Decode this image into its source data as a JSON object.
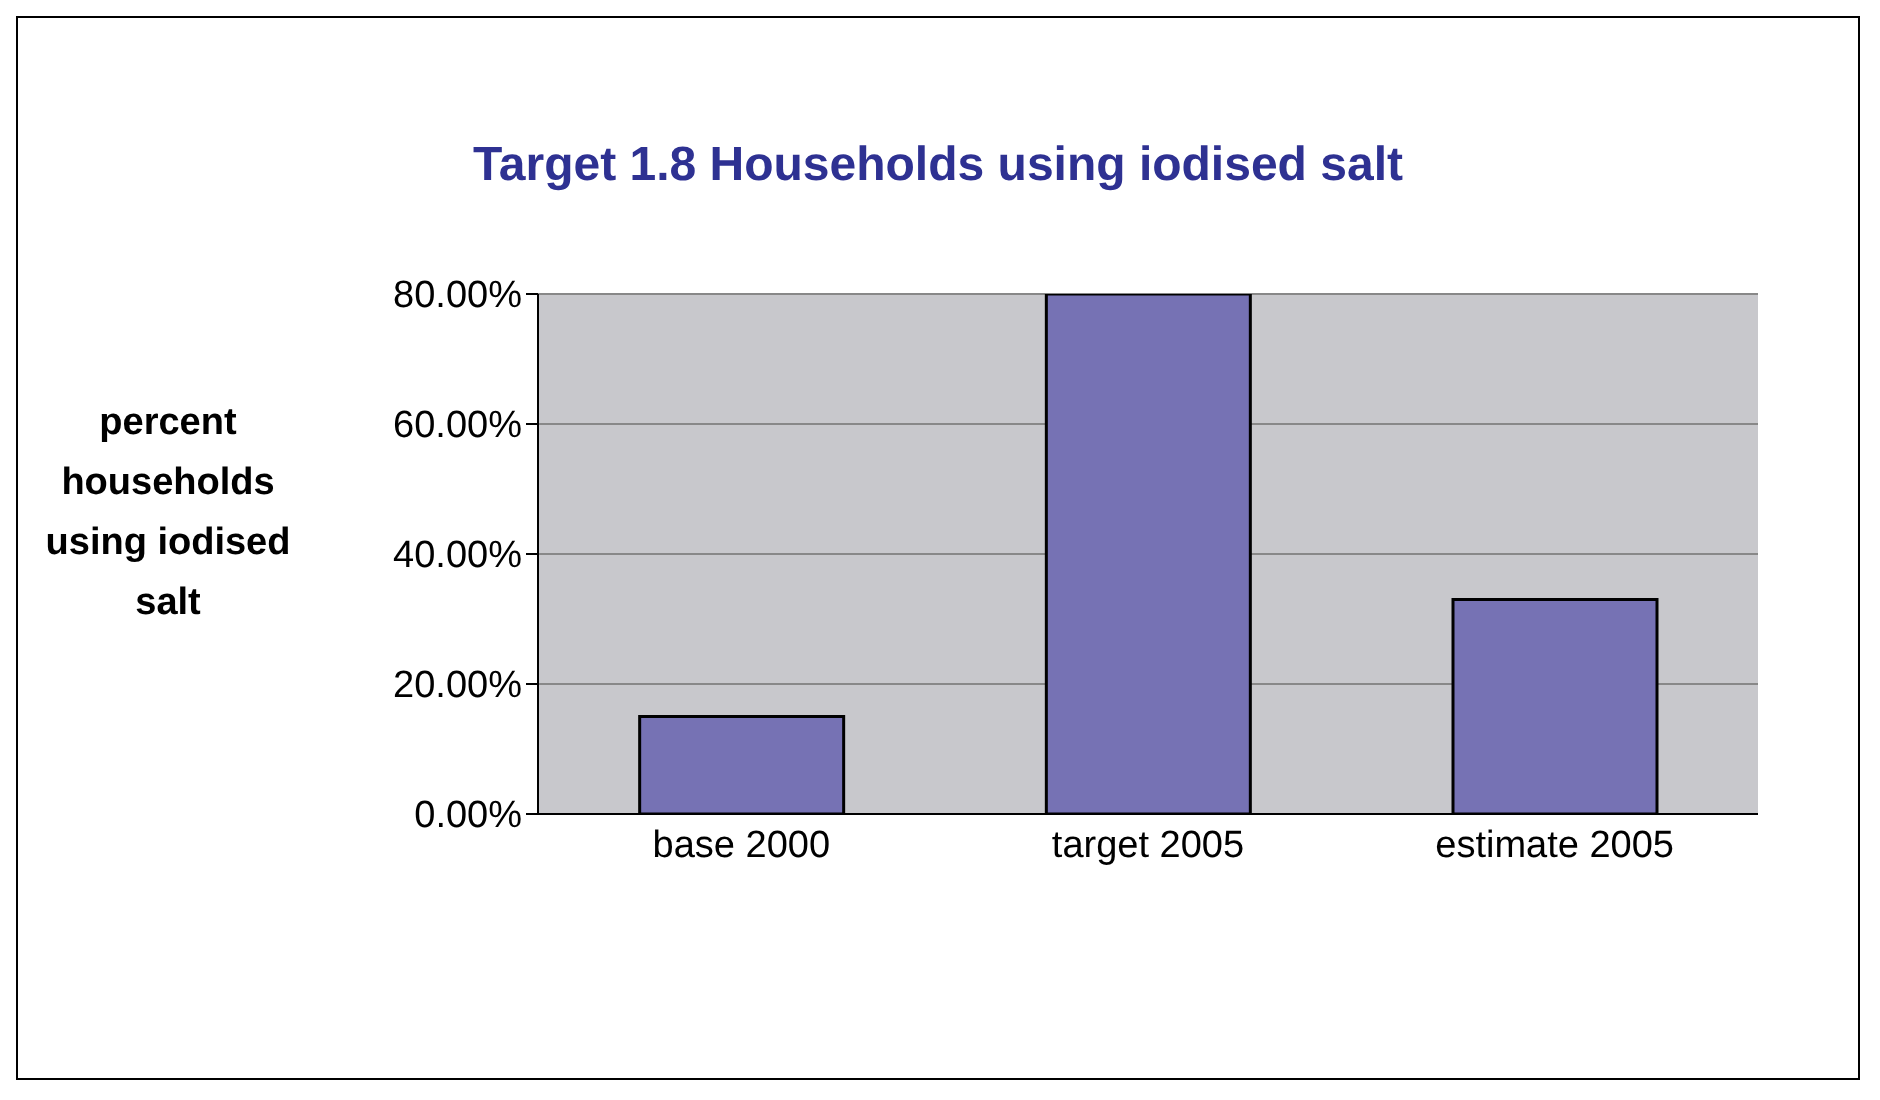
{
  "chart_data": {
    "type": "bar",
    "title": "Target 1.8 Households using iodised salt",
    "ylabel": "percent households using iodised salt",
    "categories": [
      "base 2000",
      "target 2005",
      "estimate 2005"
    ],
    "values": [
      15,
      80,
      33
    ],
    "color": "#7672b4",
    "ylim": [
      0,
      80
    ],
    "yticks": [
      {
        "value": 0,
        "label": "0.00%"
      },
      {
        "value": 20,
        "label": "20.00%"
      },
      {
        "value": 40,
        "label": "40.00%"
      },
      {
        "value": 60,
        "label": "60.00%"
      },
      {
        "value": 80,
        "label": "80.00%"
      }
    ],
    "grid": "y"
  }
}
